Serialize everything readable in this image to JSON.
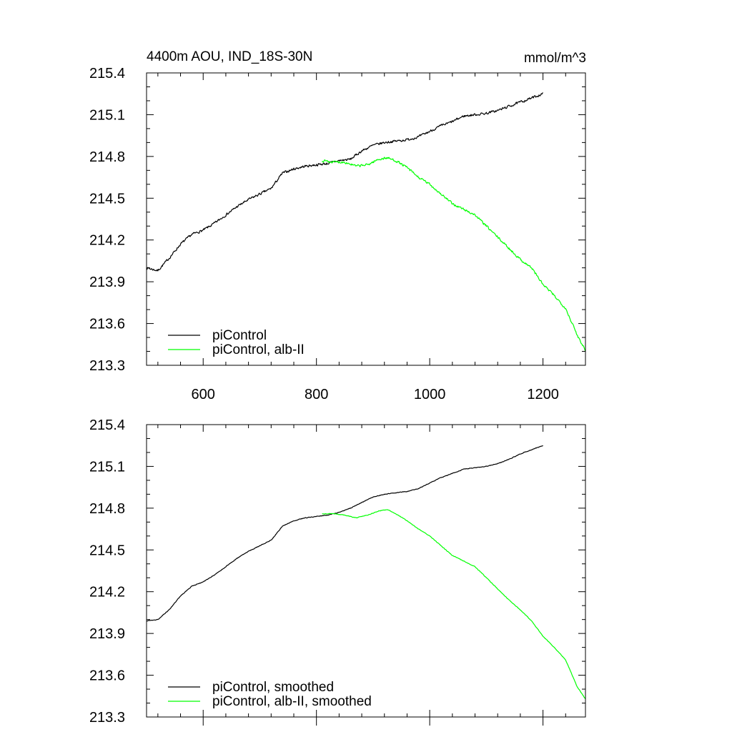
{
  "chart_data": [
    {
      "type": "line",
      "title": "4400m AOU, IND_18S-30N",
      "units": "mmol/m^3",
      "xlim": [
        500,
        1275
      ],
      "ylim": [
        213.3,
        215.4
      ],
      "x_ticks": [
        600,
        800,
        1000,
        1200
      ],
      "x_tick_labels": [
        "600",
        "800",
        "1000",
        "1200"
      ],
      "y_ticks": [
        213.3,
        213.6,
        213.9,
        214.2,
        214.5,
        214.8,
        215.1,
        215.4
      ],
      "y_tick_labels": [
        "213.3",
        "213.6",
        "213.9",
        "214.2",
        "214.5",
        "214.8",
        "215.1",
        "215.4"
      ],
      "legend_position": "bottom-left",
      "series": [
        {
          "name": "piControl",
          "color": "#000000",
          "noise": 0.012,
          "x": [
            500,
            520,
            540,
            560,
            580,
            600,
            620,
            640,
            660,
            680,
            700,
            720,
            740,
            760,
            780,
            800,
            820,
            840,
            860,
            880,
            900,
            920,
            940,
            960,
            980,
            1000,
            1020,
            1040,
            1060,
            1080,
            1100,
            1120,
            1140,
            1160,
            1180,
            1200
          ],
          "y": [
            214.0,
            213.98,
            214.07,
            214.17,
            214.24,
            214.27,
            214.32,
            214.38,
            214.44,
            214.49,
            214.53,
            214.57,
            214.68,
            214.71,
            214.73,
            214.74,
            214.75,
            214.77,
            214.78,
            214.84,
            214.88,
            214.9,
            214.91,
            214.92,
            214.94,
            214.98,
            215.02,
            215.05,
            215.09,
            215.1,
            215.11,
            215.13,
            215.16,
            215.19,
            215.22,
            215.25
          ]
        },
        {
          "name": "piControl, alb-II",
          "color": "#00ff00",
          "noise": 0.012,
          "x": [
            810,
            830,
            850,
            870,
            890,
            910,
            925,
            940,
            960,
            980,
            1000,
            1020,
            1040,
            1060,
            1080,
            1100,
            1120,
            1140,
            1160,
            1180,
            1200,
            1220,
            1240,
            1260,
            1275
          ],
          "y": [
            214.77,
            214.76,
            214.76,
            214.73,
            214.74,
            214.78,
            214.79,
            214.77,
            214.72,
            214.65,
            214.6,
            214.53,
            214.46,
            214.42,
            214.38,
            214.3,
            214.22,
            214.14,
            214.06,
            214.0,
            213.88,
            213.8,
            213.71,
            213.52,
            213.41
          ]
        }
      ]
    },
    {
      "type": "line",
      "xlim": [
        500,
        1275
      ],
      "ylim": [
        213.3,
        215.4
      ],
      "x_ticks": [
        600,
        800,
        1000,
        1200
      ],
      "y_ticks": [
        213.3,
        213.6,
        213.9,
        214.2,
        214.5,
        214.8,
        215.1,
        215.4
      ],
      "y_tick_labels": [
        "213.3",
        "213.6",
        "213.9",
        "214.2",
        "214.5",
        "214.8",
        "215.1",
        "215.4"
      ],
      "legend_position": "bottom-left",
      "series": [
        {
          "name": "piControl, smoothed",
          "color": "#000000",
          "noise": 0.003,
          "x": [
            500,
            520,
            540,
            560,
            580,
            600,
            620,
            640,
            660,
            680,
            700,
            720,
            740,
            760,
            780,
            800,
            820,
            840,
            860,
            880,
            900,
            920,
            940,
            960,
            980,
            1000,
            1020,
            1040,
            1060,
            1080,
            1100,
            1120,
            1140,
            1160,
            1180,
            1200
          ],
          "y": [
            213.99,
            214.0,
            214.07,
            214.17,
            214.24,
            214.27,
            214.32,
            214.38,
            214.44,
            214.49,
            214.53,
            214.57,
            214.67,
            214.71,
            214.73,
            214.74,
            214.75,
            214.77,
            214.8,
            214.84,
            214.88,
            214.9,
            214.91,
            214.92,
            214.94,
            214.98,
            215.02,
            215.05,
            215.08,
            215.09,
            215.1,
            215.12,
            215.15,
            215.19,
            215.22,
            215.25
          ]
        },
        {
          "name": "piControl, alb-II, smoothed",
          "color": "#00ff00",
          "noise": 0.003,
          "x": [
            810,
            830,
            850,
            870,
            890,
            910,
            925,
            940,
            960,
            980,
            1000,
            1020,
            1040,
            1060,
            1080,
            1100,
            1120,
            1140,
            1160,
            1180,
            1200,
            1220,
            1240,
            1260,
            1275
          ],
          "y": [
            214.76,
            214.76,
            214.75,
            214.73,
            214.75,
            214.78,
            214.79,
            214.76,
            214.71,
            214.65,
            214.6,
            214.53,
            214.46,
            214.42,
            214.38,
            214.3,
            214.22,
            214.14,
            214.07,
            213.99,
            213.88,
            213.8,
            213.71,
            213.52,
            213.43
          ]
        }
      ]
    }
  ]
}
